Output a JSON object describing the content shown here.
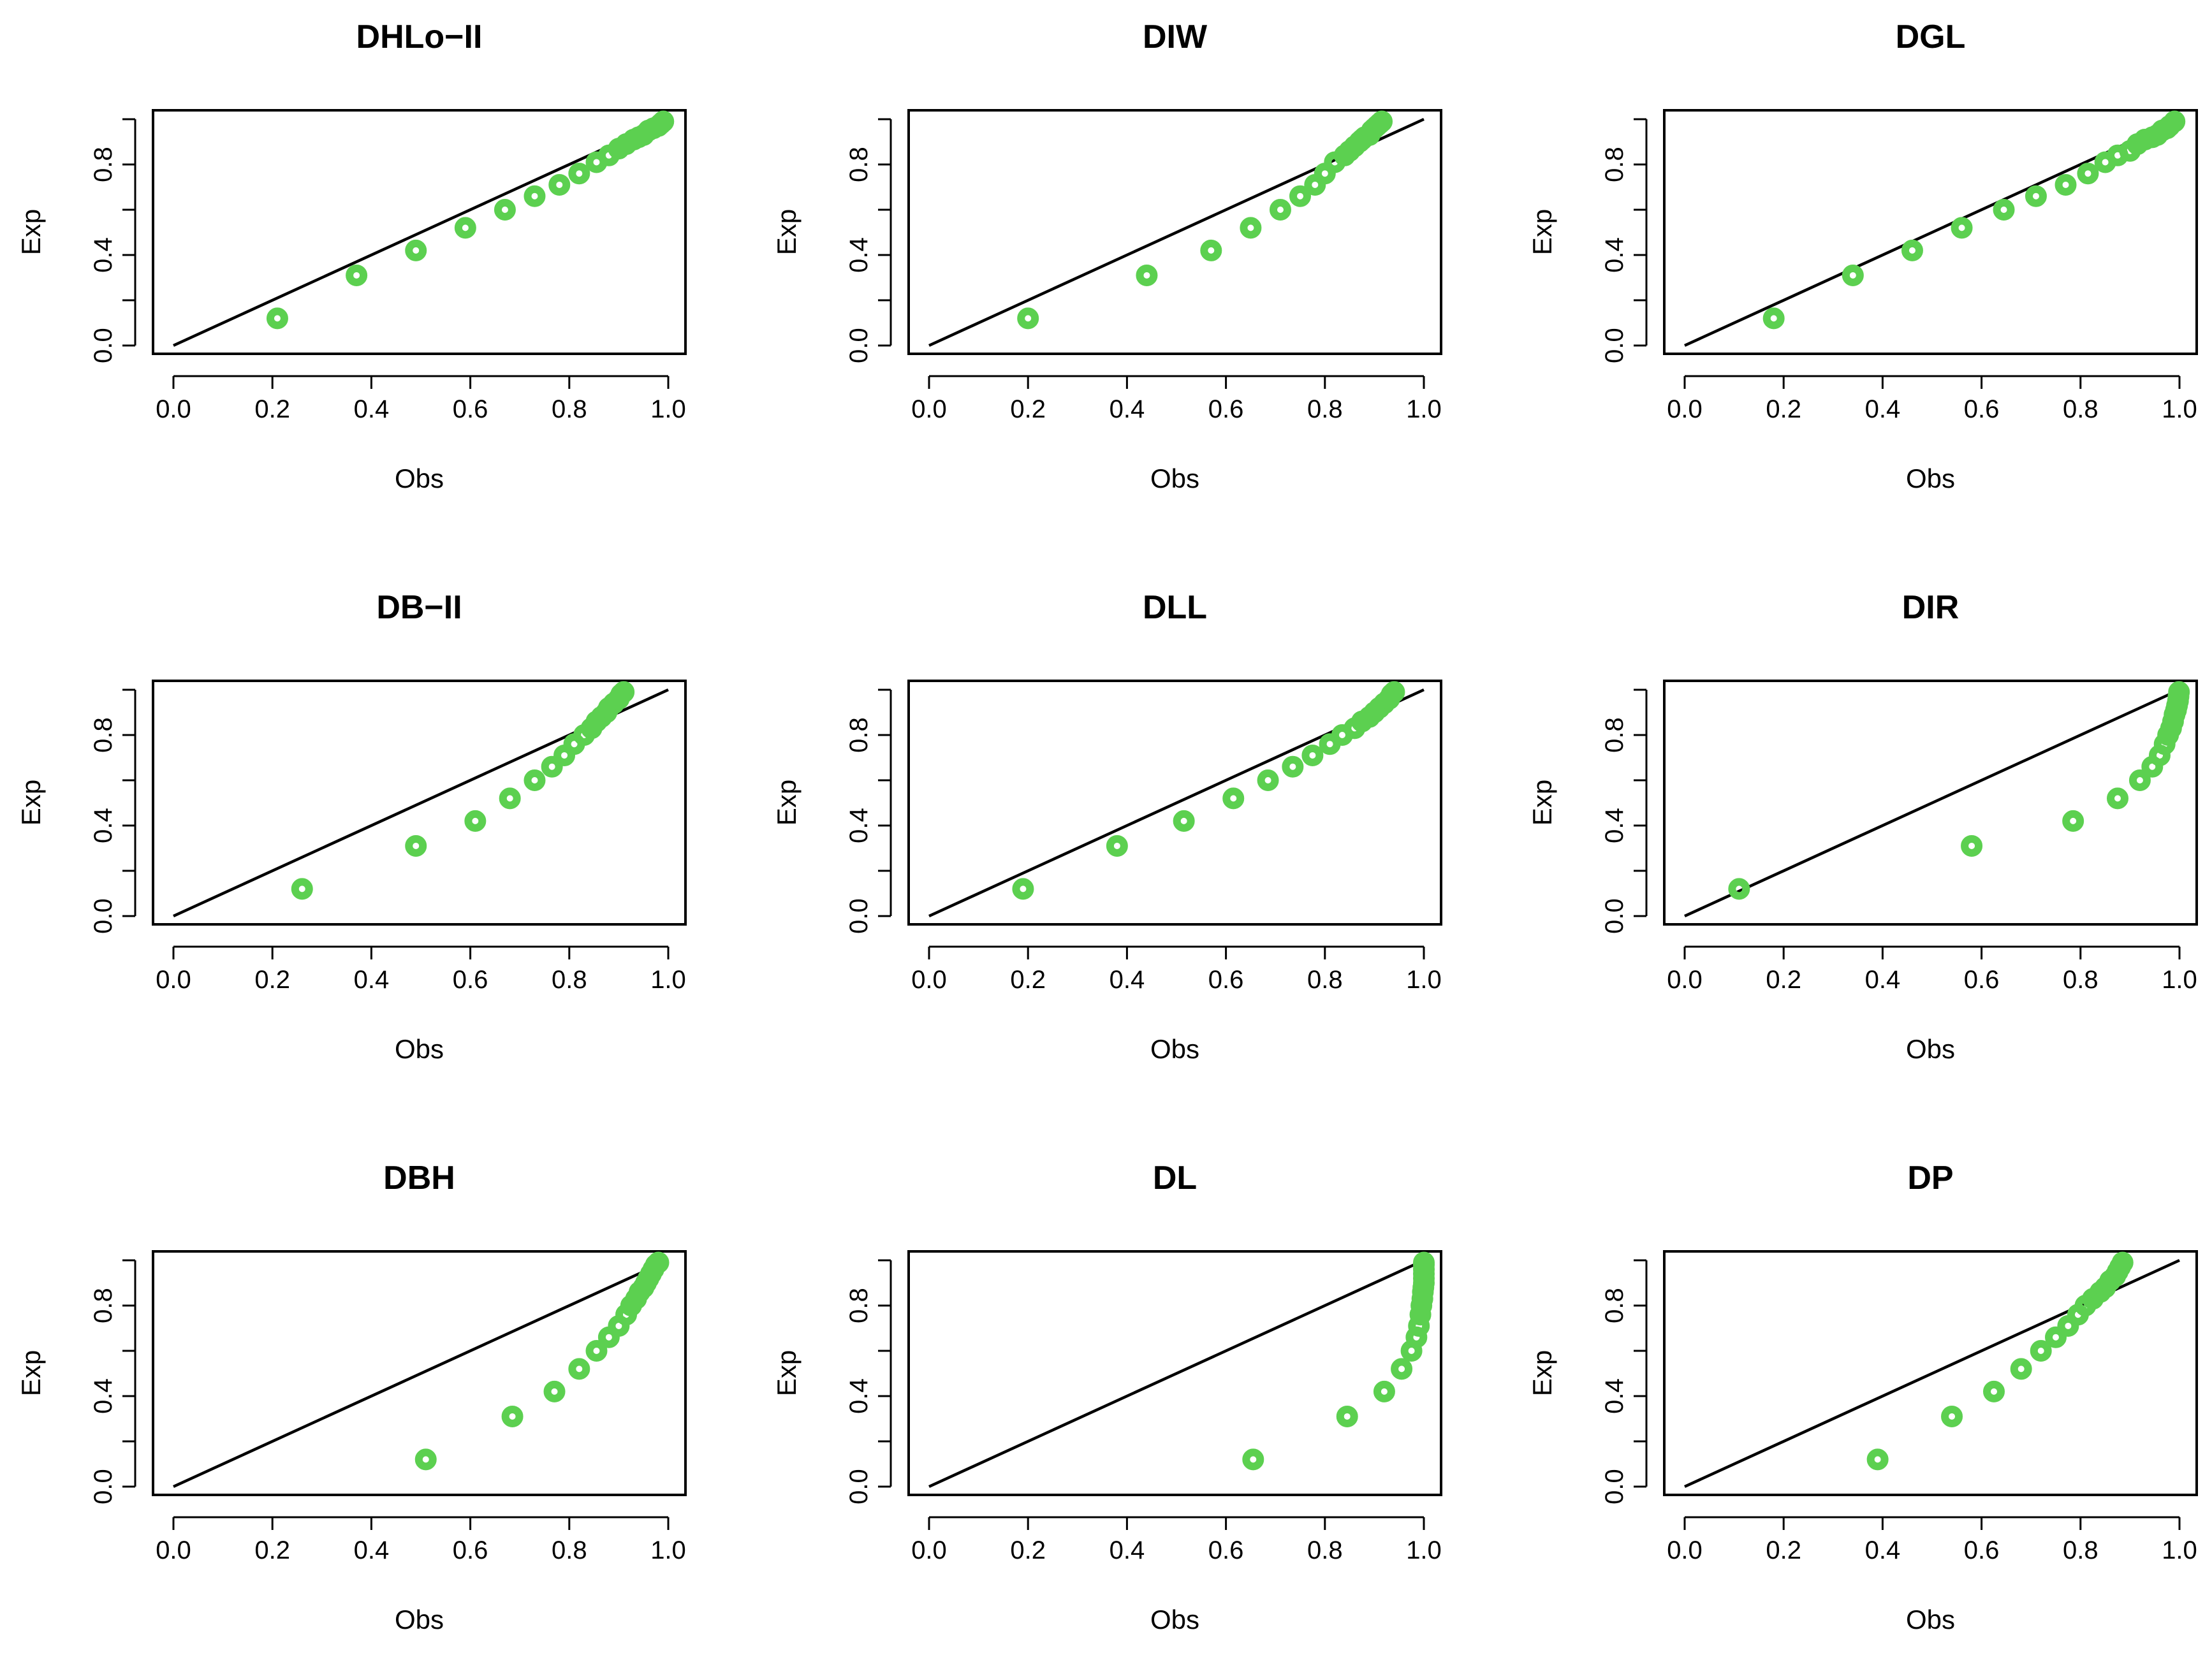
{
  "figure_caption": "",
  "colors": {
    "points": "#5cd050",
    "line": "#000000",
    "axes": "#000000"
  },
  "chart_data": [
    {
      "type": "scatter",
      "title": "DHLo−II",
      "xlabel": "Obs",
      "ylabel": "Exp",
      "xlim": [
        0,
        1
      ],
      "ylim": [
        0,
        1
      ],
      "xticks": [
        "0.0",
        "0.2",
        "0.4",
        "0.6",
        "0.8",
        "1.0"
      ],
      "yticks": [
        "0.0",
        "0.4",
        "0.8"
      ],
      "reference_line": "y = x",
      "points": [
        [
          0.21,
          0.12
        ],
        [
          0.37,
          0.31
        ],
        [
          0.49,
          0.42
        ],
        [
          0.59,
          0.52
        ],
        [
          0.67,
          0.6
        ],
        [
          0.73,
          0.66
        ],
        [
          0.78,
          0.71
        ],
        [
          0.82,
          0.76
        ],
        [
          0.855,
          0.81
        ],
        [
          0.88,
          0.84
        ],
        [
          0.9,
          0.87
        ],
        [
          0.915,
          0.89
        ],
        [
          0.93,
          0.91
        ],
        [
          0.94,
          0.92
        ],
        [
          0.95,
          0.93
        ],
        [
          0.96,
          0.95
        ],
        [
          0.97,
          0.96
        ],
        [
          0.98,
          0.97
        ],
        [
          0.985,
          0.98
        ],
        [
          0.99,
          0.99
        ]
      ]
    },
    {
      "type": "scatter",
      "title": "DIW",
      "xlabel": "Obs",
      "ylabel": "Exp",
      "xlim": [
        0,
        1
      ],
      "ylim": [
        0,
        1
      ],
      "xticks": [
        "0.0",
        "0.2",
        "0.4",
        "0.6",
        "0.8",
        "1.0"
      ],
      "yticks": [
        "0.0",
        "0.4",
        "0.8"
      ],
      "reference_line": "y = x",
      "points": [
        [
          0.2,
          0.12
        ],
        [
          0.44,
          0.31
        ],
        [
          0.57,
          0.42
        ],
        [
          0.65,
          0.52
        ],
        [
          0.71,
          0.6
        ],
        [
          0.75,
          0.66
        ],
        [
          0.78,
          0.71
        ],
        [
          0.8,
          0.76
        ],
        [
          0.82,
          0.81
        ],
        [
          0.84,
          0.84
        ],
        [
          0.85,
          0.86
        ],
        [
          0.86,
          0.88
        ],
        [
          0.87,
          0.9
        ],
        [
          0.875,
          0.91
        ],
        [
          0.88,
          0.92
        ],
        [
          0.89,
          0.93
        ],
        [
          0.895,
          0.95
        ],
        [
          0.9,
          0.96
        ],
        [
          0.905,
          0.97
        ],
        [
          0.91,
          0.98
        ],
        [
          0.915,
          0.99
        ]
      ]
    },
    {
      "type": "scatter",
      "title": "DGL",
      "xlabel": "Obs",
      "ylabel": "Exp",
      "xlim": [
        0,
        1
      ],
      "ylim": [
        0,
        1
      ],
      "xticks": [
        "0.0",
        "0.2",
        "0.4",
        "0.6",
        "0.8",
        "1.0"
      ],
      "yticks": [
        "0.0",
        "0.4",
        "0.8"
      ],
      "reference_line": "y = x",
      "points": [
        [
          0.18,
          0.12
        ],
        [
          0.34,
          0.31
        ],
        [
          0.46,
          0.42
        ],
        [
          0.56,
          0.52
        ],
        [
          0.645,
          0.6
        ],
        [
          0.71,
          0.66
        ],
        [
          0.77,
          0.71
        ],
        [
          0.815,
          0.76
        ],
        [
          0.85,
          0.81
        ],
        [
          0.875,
          0.84
        ],
        [
          0.9,
          0.86
        ],
        [
          0.915,
          0.89
        ],
        [
          0.93,
          0.91
        ],
        [
          0.945,
          0.92
        ],
        [
          0.955,
          0.93
        ],
        [
          0.965,
          0.95
        ],
        [
          0.975,
          0.96
        ],
        [
          0.98,
          0.97
        ],
        [
          0.99,
          0.99
        ]
      ]
    },
    {
      "type": "scatter",
      "title": "DB−II",
      "xlabel": "Obs",
      "ylabel": "Exp",
      "xlim": [
        0,
        1
      ],
      "ylim": [
        0,
        1
      ],
      "xticks": [
        "0.0",
        "0.2",
        "0.4",
        "0.6",
        "0.8",
        "1.0"
      ],
      "yticks": [
        "0.0",
        "0.4",
        "0.8"
      ],
      "reference_line": "y = x",
      "points": [
        [
          0.26,
          0.12
        ],
        [
          0.49,
          0.31
        ],
        [
          0.61,
          0.42
        ],
        [
          0.68,
          0.52
        ],
        [
          0.73,
          0.6
        ],
        [
          0.765,
          0.66
        ],
        [
          0.79,
          0.71
        ],
        [
          0.81,
          0.76
        ],
        [
          0.83,
          0.8
        ],
        [
          0.845,
          0.83
        ],
        [
          0.855,
          0.86
        ],
        [
          0.865,
          0.88
        ],
        [
          0.875,
          0.9
        ],
        [
          0.88,
          0.92
        ],
        [
          0.89,
          0.94
        ],
        [
          0.9,
          0.96
        ],
        [
          0.905,
          0.98
        ],
        [
          0.91,
          0.99
        ]
      ]
    },
    {
      "type": "scatter",
      "title": "DLL",
      "xlabel": "Obs",
      "ylabel": "Exp",
      "xlim": [
        0,
        1
      ],
      "ylim": [
        0,
        1
      ],
      "xticks": [
        "0.0",
        "0.2",
        "0.4",
        "0.6",
        "0.8",
        "1.0"
      ],
      "yticks": [
        "0.0",
        "0.4",
        "0.8"
      ],
      "reference_line": "y = x",
      "points": [
        [
          0.19,
          0.12
        ],
        [
          0.38,
          0.31
        ],
        [
          0.515,
          0.42
        ],
        [
          0.615,
          0.52
        ],
        [
          0.685,
          0.6
        ],
        [
          0.735,
          0.66
        ],
        [
          0.775,
          0.71
        ],
        [
          0.81,
          0.76
        ],
        [
          0.835,
          0.8
        ],
        [
          0.86,
          0.83
        ],
        [
          0.875,
          0.86
        ],
        [
          0.89,
          0.88
        ],
        [
          0.9,
          0.9
        ],
        [
          0.91,
          0.92
        ],
        [
          0.92,
          0.94
        ],
        [
          0.93,
          0.96
        ],
        [
          0.935,
          0.98
        ],
        [
          0.94,
          0.99
        ]
      ]
    },
    {
      "type": "scatter",
      "title": "DIR",
      "xlabel": "Obs",
      "ylabel": "Exp",
      "xlim": [
        0,
        1
      ],
      "ylim": [
        0,
        1
      ],
      "xticks": [
        "0.0",
        "0.2",
        "0.4",
        "0.6",
        "0.8",
        "1.0"
      ],
      "yticks": [
        "0.0",
        "0.4",
        "0.8"
      ],
      "reference_line": "y = x",
      "points": [
        [
          0.11,
          0.12
        ],
        [
          0.58,
          0.31
        ],
        [
          0.785,
          0.42
        ],
        [
          0.875,
          0.52
        ],
        [
          0.92,
          0.6
        ],
        [
          0.945,
          0.66
        ],
        [
          0.96,
          0.71
        ],
        [
          0.97,
          0.76
        ],
        [
          0.977,
          0.8
        ],
        [
          0.983,
          0.83
        ],
        [
          0.987,
          0.86
        ],
        [
          0.99,
          0.89
        ],
        [
          0.993,
          0.91
        ],
        [
          0.995,
          0.93
        ],
        [
          0.997,
          0.95
        ],
        [
          0.998,
          0.97
        ],
        [
          0.999,
          0.99
        ]
      ]
    },
    {
      "type": "scatter",
      "title": "DBH",
      "xlabel": "Obs",
      "ylabel": "Exp",
      "xlim": [
        0,
        1
      ],
      "ylim": [
        0,
        1
      ],
      "xticks": [
        "0.0",
        "0.2",
        "0.4",
        "0.6",
        "0.8",
        "1.0"
      ],
      "yticks": [
        "0.0",
        "0.4",
        "0.8"
      ],
      "reference_line": "y = x",
      "points": [
        [
          0.51,
          0.12
        ],
        [
          0.685,
          0.31
        ],
        [
          0.77,
          0.42
        ],
        [
          0.82,
          0.52
        ],
        [
          0.855,
          0.6
        ],
        [
          0.88,
          0.66
        ],
        [
          0.9,
          0.71
        ],
        [
          0.915,
          0.76
        ],
        [
          0.925,
          0.8
        ],
        [
          0.935,
          0.83
        ],
        [
          0.942,
          0.86
        ],
        [
          0.95,
          0.88
        ],
        [
          0.955,
          0.9
        ],
        [
          0.96,
          0.92
        ],
        [
          0.965,
          0.94
        ],
        [
          0.97,
          0.96
        ],
        [
          0.975,
          0.98
        ],
        [
          0.98,
          0.99
        ]
      ]
    },
    {
      "type": "scatter",
      "title": "DL",
      "xlabel": "Obs",
      "ylabel": "Exp",
      "xlim": [
        0,
        1
      ],
      "ylim": [
        0,
        1
      ],
      "xticks": [
        "0.0",
        "0.2",
        "0.4",
        "0.6",
        "0.8",
        "1.0"
      ],
      "yticks": [
        "0.0",
        "0.4",
        "0.8"
      ],
      "reference_line": "y = x",
      "points": [
        [
          0.655,
          0.12
        ],
        [
          0.845,
          0.31
        ],
        [
          0.92,
          0.42
        ],
        [
          0.955,
          0.52
        ],
        [
          0.975,
          0.6
        ],
        [
          0.985,
          0.66
        ],
        [
          0.99,
          0.71
        ],
        [
          0.993,
          0.76
        ],
        [
          0.995,
          0.8
        ],
        [
          0.997,
          0.83
        ],
        [
          0.998,
          0.86
        ],
        [
          0.999,
          0.88
        ],
        [
          1.0,
          0.9
        ],
        [
          1.0,
          0.92
        ],
        [
          1.0,
          0.94
        ],
        [
          1.0,
          0.96
        ],
        [
          1.0,
          0.98
        ],
        [
          1.0,
          0.99
        ]
      ]
    },
    {
      "type": "scatter",
      "title": "DP",
      "xlabel": "Obs",
      "ylabel": "Exp",
      "xlim": [
        0,
        1
      ],
      "ylim": [
        0,
        1
      ],
      "xticks": [
        "0.0",
        "0.2",
        "0.4",
        "0.6",
        "0.8",
        "1.0"
      ],
      "yticks": [
        "0.0",
        "0.4",
        "0.8"
      ],
      "reference_line": "y = x",
      "points": [
        [
          0.39,
          0.12
        ],
        [
          0.54,
          0.31
        ],
        [
          0.625,
          0.42
        ],
        [
          0.68,
          0.52
        ],
        [
          0.72,
          0.6
        ],
        [
          0.75,
          0.66
        ],
        [
          0.775,
          0.71
        ],
        [
          0.795,
          0.76
        ],
        [
          0.81,
          0.8
        ],
        [
          0.825,
          0.83
        ],
        [
          0.84,
          0.86
        ],
        [
          0.85,
          0.88
        ],
        [
          0.86,
          0.91
        ],
        [
          0.87,
          0.93
        ],
        [
          0.875,
          0.95
        ],
        [
          0.88,
          0.97
        ],
        [
          0.885,
          0.99
        ]
      ]
    }
  ]
}
